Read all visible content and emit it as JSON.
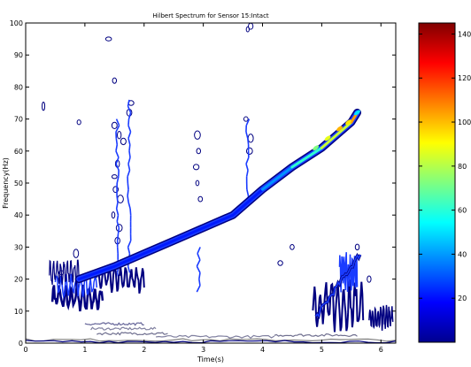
{
  "chart_data": {
    "type": "heatmap",
    "title": "Hilbert Spectrum for Sensor 15:Intact",
    "xlabel": "Time(s)",
    "ylabel": "Frequency(Hz)",
    "xlim": [
      0,
      6.25
    ],
    "ylim": [
      0,
      100
    ],
    "x_ticks": [
      "0",
      "1",
      "2",
      "3",
      "4",
      "5",
      "6"
    ],
    "y_ticks": [
      "0",
      "10",
      "20",
      "30",
      "40",
      "50",
      "60",
      "70",
      "80",
      "90",
      "100"
    ],
    "colorbar": {
      "range": [
        0,
        145
      ],
      "ticks": [
        "20",
        "40",
        "60",
        "80",
        "100",
        "120",
        "140"
      ],
      "colormap": "jet"
    },
    "series": [
      {
        "x": [
          0.9,
          1.5,
          2.0,
          2.5,
          3.0,
          3.5,
          4.0,
          4.5,
          5.0,
          5.5,
          5.6
        ],
        "y": [
          20,
          24,
          28,
          32,
          36,
          40,
          48,
          55,
          61,
          69,
          72
        ]
      }
    ]
  }
}
